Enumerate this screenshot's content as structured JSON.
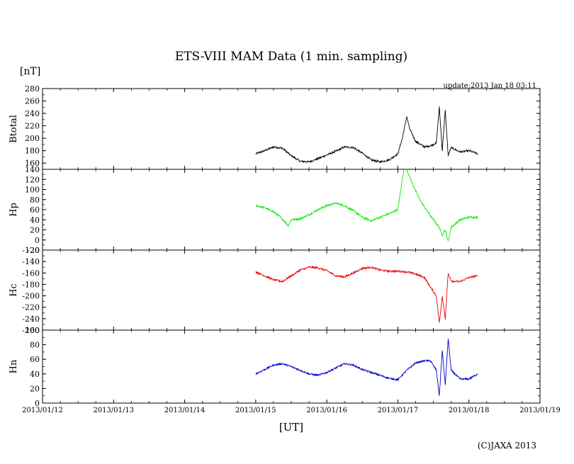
{
  "title": "ETS-VIII MAM Data (1 min. sampling)",
  "unit_label": "[nT]",
  "update_text": "update:2013 Jan 18 03:11",
  "xlabel": "[UT]",
  "copyright": "(C)JAXA 2013",
  "chart_data": [
    {
      "type": "line",
      "ylabel": "Btotal",
      "color": "#000000",
      "ylim": [
        150,
        280
      ],
      "yticks": [
        160,
        180,
        200,
        220,
        240,
        260,
        280
      ],
      "xlim": [
        "2013/01/12 00:00",
        "2013/01/19 00:00"
      ],
      "xticks": [
        "2013/01/12",
        "2013/01/13",
        "2013/01/14",
        "2013/01/15",
        "2013/01/16",
        "2013/01/17",
        "2013/01/18",
        "2013/01/19"
      ],
      "series": [
        {
          "x": [
            "2013/01/15 00:00",
            "2013/01/15 03:00",
            "2013/01/15 06:00",
            "2013/01/15 09:00",
            "2013/01/15 12:00",
            "2013/01/15 15:00",
            "2013/01/15 18:00",
            "2013/01/15 21:00",
            "2013/01/16 00:00",
            "2013/01/16 03:00",
            "2013/01/16 06:00",
            "2013/01/16 09:00",
            "2013/01/16 12:00",
            "2013/01/16 15:00",
            "2013/01/16 18:00",
            "2013/01/16 21:00",
            "2013/01/17 00:00",
            "2013/01/17 01:30",
            "2013/01/17 03:00",
            "2013/01/17 04:00",
            "2013/01/17 06:00",
            "2013/01/17 09:00",
            "2013/01/17 11:00",
            "2013/01/17 13:00",
            "2013/01/17 14:00",
            "2013/01/17 15:00",
            "2013/01/17 16:00",
            "2013/01/17 17:00",
            "2013/01/17 18:00",
            "2013/01/17 21:00",
            "2013/01/18 00:00",
            "2013/01/18 03:00"
          ],
          "y": [
            175,
            180,
            186,
            184,
            172,
            163,
            162,
            167,
            173,
            179,
            186,
            185,
            176,
            165,
            162,
            165,
            175,
            200,
            235,
            215,
            195,
            186,
            188,
            192,
            250,
            180,
            245,
            172,
            185,
            178,
            180,
            175
          ]
        }
      ]
    },
    {
      "type": "line",
      "ylabel": "Hp",
      "color": "#00ee00",
      "ylim": [
        -20,
        140
      ],
      "yticks": [
        -20,
        0,
        20,
        40,
        60,
        80,
        100,
        120,
        140
      ],
      "xlim": [
        "2013/01/12 00:00",
        "2013/01/19 00:00"
      ],
      "xticks": [
        "2013/01/12",
        "2013/01/13",
        "2013/01/14",
        "2013/01/15",
        "2013/01/16",
        "2013/01/17",
        "2013/01/18",
        "2013/01/19"
      ],
      "series": [
        {
          "x": [
            "2013/01/15 00:00",
            "2013/01/15 03:00",
            "2013/01/15 06:00",
            "2013/01/15 09:00",
            "2013/01/15 11:00",
            "2013/01/15 12:00",
            "2013/01/15 15:00",
            "2013/01/15 18:00",
            "2013/01/15 21:00",
            "2013/01/16 00:00",
            "2013/01/16 03:00",
            "2013/01/16 06:00",
            "2013/01/16 09:00",
            "2013/01/16 12:00",
            "2013/01/16 15:00",
            "2013/01/16 18:00",
            "2013/01/16 21:00",
            "2013/01/17 00:00",
            "2013/01/17 01:00",
            "2013/01/17 02:00",
            "2013/01/17 03:00",
            "2013/01/17 05:00",
            "2013/01/17 07:00",
            "2013/01/17 09:00",
            "2013/01/17 12:00",
            "2013/01/17 14:00",
            "2013/01/17 15:00",
            "2013/01/17 16:00",
            "2013/01/17 17:00",
            "2013/01/17 18:00",
            "2013/01/17 21:00",
            "2013/01/18 00:00",
            "2013/01/18 03:00"
          ],
          "y": [
            68,
            64,
            56,
            42,
            28,
            40,
            42,
            50,
            60,
            68,
            73,
            68,
            58,
            45,
            38,
            45,
            52,
            60,
            100,
            140,
            140,
            110,
            85,
            65,
            40,
            25,
            10,
            20,
            -3,
            25,
            40,
            45,
            45
          ]
        }
      ]
    },
    {
      "type": "line",
      "ylabel": "Hc",
      "color": "#ee0000",
      "ylim": [
        -260,
        -120
      ],
      "yticks": [
        -260,
        -240,
        -220,
        -200,
        -180,
        -160,
        -140,
        -120
      ],
      "xlim": [
        "2013/01/12 00:00",
        "2013/01/19 00:00"
      ],
      "xticks": [
        "2013/01/12",
        "2013/01/13",
        "2013/01/14",
        "2013/01/15",
        "2013/01/16",
        "2013/01/17",
        "2013/01/18",
        "2013/01/19"
      ],
      "series": [
        {
          "x": [
            "2013/01/15 00:00",
            "2013/01/15 03:00",
            "2013/01/15 06:00",
            "2013/01/15 09:00",
            "2013/01/15 12:00",
            "2013/01/15 15:00",
            "2013/01/15 18:00",
            "2013/01/15 21:00",
            "2013/01/16 00:00",
            "2013/01/16 03:00",
            "2013/01/16 06:00",
            "2013/01/16 09:00",
            "2013/01/16 12:00",
            "2013/01/16 15:00",
            "2013/01/16 18:00",
            "2013/01/16 21:00",
            "2013/01/17 00:00",
            "2013/01/17 03:00",
            "2013/01/17 06:00",
            "2013/01/17 09:00",
            "2013/01/17 11:00",
            "2013/01/17 13:00",
            "2013/01/17 14:00",
            "2013/01/17 15:00",
            "2013/01/17 16:00",
            "2013/01/17 17:00",
            "2013/01/17 18:00",
            "2013/01/17 21:00",
            "2013/01/18 00:00",
            "2013/01/18 03:00"
          ],
          "y": [
            -158,
            -165,
            -172,
            -175,
            -165,
            -155,
            -150,
            -151,
            -156,
            -165,
            -167,
            -160,
            -152,
            -150,
            -155,
            -157,
            -157,
            -158,
            -162,
            -168,
            -185,
            -200,
            -248,
            -200,
            -240,
            -160,
            -175,
            -175,
            -168,
            -165
          ]
        }
      ]
    },
    {
      "type": "line",
      "ylabel": "Hn",
      "color": "#0000cc",
      "ylim": [
        0,
        100
      ],
      "yticks": [
        0,
        20,
        40,
        60,
        80,
        100
      ],
      "xlim": [
        "2013/01/12 00:00",
        "2013/01/19 00:00"
      ],
      "xticks": [
        "2013/01/12",
        "2013/01/13",
        "2013/01/14",
        "2013/01/15",
        "2013/01/16",
        "2013/01/17",
        "2013/01/18",
        "2013/01/19"
      ],
      "series": [
        {
          "x": [
            "2013/01/15 00:00",
            "2013/01/15 03:00",
            "2013/01/15 06:00",
            "2013/01/15 09:00",
            "2013/01/15 12:00",
            "2013/01/15 15:00",
            "2013/01/15 18:00",
            "2013/01/15 21:00",
            "2013/01/16 00:00",
            "2013/01/16 03:00",
            "2013/01/16 06:00",
            "2013/01/16 09:00",
            "2013/01/16 12:00",
            "2013/01/16 15:00",
            "2013/01/16 18:00",
            "2013/01/16 21:00",
            "2013/01/17 00:00",
            "2013/01/17 03:00",
            "2013/01/17 06:00",
            "2013/01/17 09:00",
            "2013/01/17 11:00",
            "2013/01/17 13:00",
            "2013/01/17 14:00",
            "2013/01/17 15:00",
            "2013/01/17 16:00",
            "2013/01/17 17:00",
            "2013/01/17 18:00",
            "2013/01/17 21:00",
            "2013/01/18 00:00",
            "2013/01/18 03:00"
          ],
          "y": [
            40,
            46,
            52,
            54,
            50,
            45,
            40,
            38,
            42,
            48,
            54,
            52,
            46,
            42,
            38,
            34,
            32,
            45,
            55,
            58,
            58,
            45,
            10,
            72,
            25,
            88,
            45,
            33,
            33,
            40
          ]
        }
      ]
    }
  ]
}
